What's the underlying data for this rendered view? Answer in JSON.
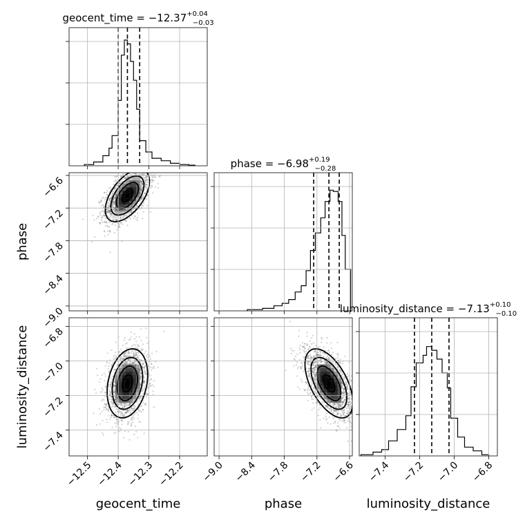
{
  "chart_data": {
    "type": "corner",
    "parameters": [
      "geocent_time",
      "phase",
      "luminosity_distance"
    ],
    "ranges": {
      "geocent_time": [
        -12.56,
        -12.11
      ],
      "phase": [
        -9.09,
        -6.55
      ],
      "luminosity_distance": [
        -7.55,
        -6.75
      ]
    },
    "ticks": {
      "geocent_time": [
        -12.5,
        -12.4,
        -12.3,
        -12.2
      ],
      "phase": [
        -9.0,
        -8.4,
        -7.8,
        -7.2,
        -6.6
      ],
      "luminosity_distance": [
        -7.4,
        -7.2,
        -7.0,
        -6.8
      ]
    },
    "tick_labels": {
      "geocent_time": [
        "−12.5",
        "−12.4",
        "−12.3",
        "−12.2"
      ],
      "phase": [
        "−9.0",
        "−8.4",
        "−7.8",
        "−7.2",
        "−6.6"
      ],
      "luminosity_distance": [
        "−7.4",
        "−7.2",
        "−7.0",
        "−6.8"
      ]
    },
    "phase_y_tick_labels": [
      "−6.6",
      "−7.2",
      "−7.8",
      "−8.4",
      "−9.0"
    ],
    "lumdist_y_tick_labels": [
      "−6.8",
      "−7.0",
      "−7.2",
      "−7.4"
    ],
    "titles": {
      "geocent_time": {
        "label": "geocent_time = ",
        "median": "−12.37",
        "plus": "+0.04",
        "minus": "−0.03"
      },
      "phase": {
        "label": "phase = ",
        "median": "−6.98",
        "plus": "+0.19",
        "minus": "−0.28"
      },
      "luminosity_distance": {
        "label": "luminosity_distance = ",
        "median": "−7.13",
        "plus": "+0.10",
        "minus": "−0.10"
      }
    },
    "axis_labels": {
      "x": [
        "geocent_time",
        "phase",
        "luminosity_distance"
      ],
      "y": [
        "phase",
        "luminosity_distance"
      ]
    },
    "quantiles": {
      "geocent_time": [
        -12.4,
        -12.37,
        -12.33
      ],
      "phase": [
        -7.26,
        -6.98,
        -6.79
      ],
      "luminosity_distance": [
        -7.23,
        -7.13,
        -7.03
      ]
    },
    "histograms": {
      "geocent_time": {
        "edges": [
          -12.51,
          -12.48,
          -12.45,
          -12.43,
          -12.42,
          -12.4,
          -12.39,
          -12.38,
          -12.37,
          -12.36,
          -12.35,
          -12.34,
          -12.33,
          -12.31,
          -12.29,
          -12.26,
          -12.23,
          -12.2,
          -12.17,
          -12.15
        ],
        "values": [
          0.01,
          0.03,
          0.08,
          0.14,
          0.24,
          0.52,
          0.88,
          1.0,
          0.97,
          0.83,
          0.68,
          0.45,
          0.2,
          0.11,
          0.06,
          0.04,
          0.02,
          0.01,
          0.005
        ]
      },
      "phase": {
        "edges": [
          -8.48,
          -8.2,
          -7.99,
          -7.84,
          -7.72,
          -7.6,
          -7.49,
          -7.4,
          -7.32,
          -7.23,
          -7.13,
          -7.05,
          -6.96,
          -6.9,
          -6.81,
          -6.74,
          -6.68,
          -6.58
        ],
        "values": [
          0.01,
          0.02,
          0.04,
          0.06,
          0.09,
          0.15,
          0.2,
          0.32,
          0.48,
          0.62,
          0.74,
          0.87,
          0.96,
          0.95,
          0.87,
          0.6,
          0.33
        ]
      },
      "luminosity_distance": {
        "edges": [
          -7.54,
          -7.47,
          -7.42,
          -7.38,
          -7.33,
          -7.28,
          -7.25,
          -7.22,
          -7.18,
          -7.16,
          -7.13,
          -7.1,
          -7.07,
          -7.04,
          -7.02,
          -6.98,
          -6.94,
          -6.89,
          -6.84,
          -6.8
        ],
        "values": [
          0.01,
          0.03,
          0.05,
          0.12,
          0.21,
          0.32,
          0.55,
          0.74,
          0.8,
          0.87,
          0.84,
          0.77,
          0.66,
          0.54,
          0.3,
          0.15,
          0.07,
          0.04,
          0.01
        ]
      }
    },
    "joint_2d": {
      "phase_vs_geocent_time": {
        "mean": [
          -12.37,
          -6.97
        ],
        "std": [
          0.036,
          0.24
        ],
        "rho": 0.55
      },
      "luminosity_distance_vs_geocent_time": {
        "mean": [
          -12.37,
          -7.13
        ],
        "std": [
          0.033,
          0.1
        ],
        "rho": 0.25
      },
      "luminosity_distance_vs_phase": {
        "mean": [
          -6.98,
          -7.13
        ],
        "std": [
          0.22,
          0.1
        ],
        "rho": -0.55
      }
    },
    "contour_levels_sigma": [
      0.5,
      1.0,
      1.5,
      2.0
    ],
    "grid": true
  }
}
